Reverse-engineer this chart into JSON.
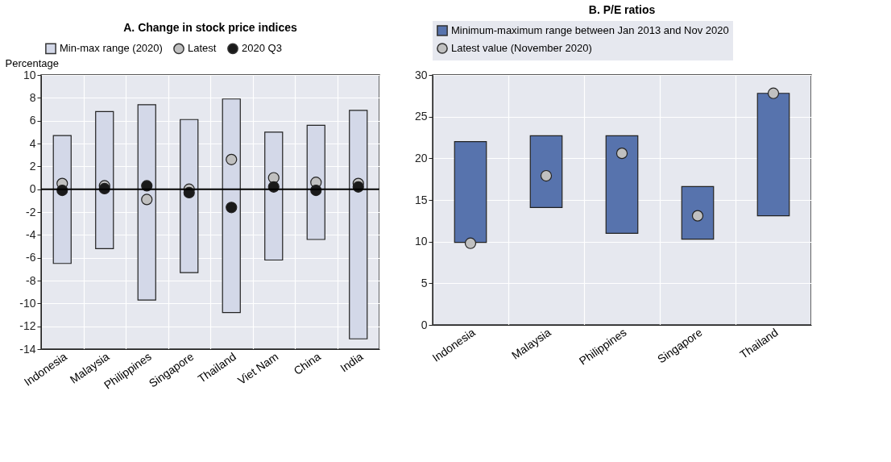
{
  "chart_data": [
    {
      "type": "bar",
      "title": "A. Change in stock price indices",
      "ylabel": "Percentage",
      "categories": [
        "Indonesia",
        "Malaysia",
        "Philippines",
        "Singapore",
        "Thailand",
        "Viet Nam",
        "China",
        "India"
      ],
      "series": [
        {
          "name": "Min-max range (2020)",
          "color": "#d3d8e8",
          "base": [
            -6.5,
            -5.2,
            -9.7,
            -7.3,
            -10.8,
            -6.2,
            -4.4,
            -13.1
          ],
          "values": [
            11.2,
            12.0,
            17.1,
            13.4,
            18.7,
            11.2,
            10.0,
            20.0
          ]
        },
        {
          "name": "Latest",
          "type": "scatter",
          "color": "#c0c0c0",
          "values": [
            0.5,
            0.3,
            -0.9,
            0.0,
            2.6,
            1.0,
            0.6,
            0.5
          ]
        },
        {
          "name": "2020 Q3",
          "type": "scatter",
          "color": "#1a1a1a",
          "values": [
            -0.1,
            0.05,
            0.3,
            -0.3,
            -1.6,
            0.2,
            -0.1,
            0.2
          ]
        }
      ],
      "ylim": [
        -14,
        10
      ],
      "yticks": [
        -14,
        -12,
        -10,
        -8,
        -6,
        -4,
        -2,
        0,
        2,
        4,
        6,
        8,
        10
      ],
      "ref_lines": [
        {
          "axis": "y",
          "value": 0,
          "color": "#000000"
        }
      ],
      "grid": true,
      "legend": "top",
      "marker": "circle"
    },
    {
      "type": "bar",
      "title": "B. P/E ratios",
      "categories": [
        "Indonesia",
        "Malaysia",
        "Philippines",
        "Singapore",
        "Thailand"
      ],
      "series": [
        {
          "name": "Minimum-maximum range between Jan 2013 and Nov 2020",
          "color": "#5773ad",
          "base": [
            9.9,
            14.1,
            11.0,
            10.3,
            13.1
          ],
          "values": [
            12.1,
            8.6,
            11.7,
            6.3,
            14.7
          ]
        },
        {
          "name": "Latest value (November 2020)",
          "type": "scatter",
          "color": "#c0c0c0",
          "values": [
            9.8,
            17.9,
            20.6,
            13.1,
            27.8
          ]
        }
      ],
      "ylim": [
        0,
        30
      ],
      "yticks": [
        0,
        5,
        10,
        15,
        20,
        25,
        30
      ],
      "grid": true,
      "legend": "top",
      "marker": "circle"
    }
  ]
}
